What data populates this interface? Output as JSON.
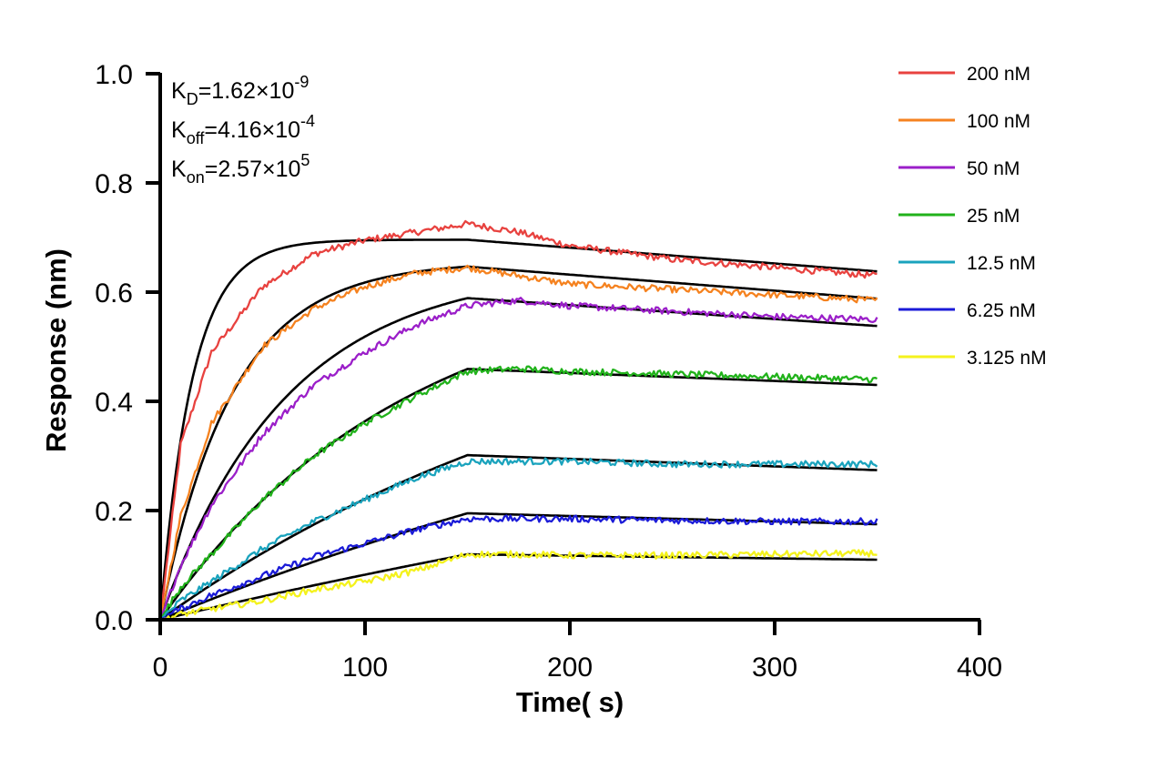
{
  "chart_data": {
    "type": "line",
    "title": "",
    "xlabel": "Time( s)",
    "ylabel": "Response (nm)",
    "xlim": [
      0,
      400
    ],
    "ylim": [
      0,
      1.0
    ],
    "x_ticks": [
      "0",
      "100",
      "200",
      "300",
      "400"
    ],
    "y_ticks": [
      "0.0",
      "0.2",
      "0.4",
      "0.6",
      "0.8",
      "1.0"
    ],
    "grid": false,
    "legend_position": "top-right",
    "association_end_s": 150,
    "end_s": 350,
    "annotations": [
      {
        "base": "K",
        "sub": "D",
        "mid": "=1.62×10",
        "sup": "-9"
      },
      {
        "base": "K",
        "sub": "off",
        "mid": "=4.16×10",
        "sup": "-4"
      },
      {
        "base": "K",
        "sub": "on",
        "mid": "=2.57×10",
        "sup": "5"
      }
    ],
    "fit_color": "#000000",
    "series": [
      {
        "name": "200 nM",
        "color": "#e8423f",
        "x": [
          0,
          10,
          25,
          50,
          75,
          100,
          125,
          150,
          175,
          200,
          250,
          300,
          350
        ],
        "y": [
          0,
          0.32,
          0.49,
          0.61,
          0.67,
          0.695,
          0.71,
          0.725,
          0.71,
          0.685,
          0.66,
          0.645,
          0.63
        ],
        "fit_plateau": 0.696,
        "fit_kobs": 0.064,
        "fit_end": 0.638
      },
      {
        "name": "100 nM",
        "color": "#f5821f",
        "x": [
          0,
          10,
          25,
          50,
          75,
          100,
          125,
          150,
          175,
          200,
          250,
          300,
          350
        ],
        "y": [
          0,
          0.19,
          0.36,
          0.5,
          0.57,
          0.61,
          0.635,
          0.645,
          0.63,
          0.615,
          0.605,
          0.595,
          0.585
        ],
        "fit_plateau": 0.656,
        "fit_kobs": 0.0284,
        "fit_end": 0.588
      },
      {
        "name": "50 nM",
        "color": "#9b1fc9",
        "x": [
          0,
          10,
          25,
          50,
          75,
          100,
          125,
          150,
          175,
          200,
          250,
          300,
          350
        ],
        "y": [
          0,
          0.1,
          0.21,
          0.34,
          0.43,
          0.49,
          0.54,
          0.575,
          0.585,
          0.575,
          0.565,
          0.555,
          0.55
        ],
        "fit_plateau": 0.645,
        "fit_kobs": 0.0163,
        "fit_end": 0.538
      },
      {
        "name": "25 nM",
        "color": "#21b21b",
        "x": [
          0,
          10,
          25,
          50,
          75,
          100,
          125,
          150,
          175,
          200,
          250,
          300,
          350
        ],
        "y": [
          0,
          0.06,
          0.12,
          0.22,
          0.3,
          0.36,
          0.41,
          0.455,
          0.46,
          0.455,
          0.45,
          0.445,
          0.44
        ],
        "fit_plateau": 0.645,
        "fit_kobs": 0.0083,
        "fit_end": 0.43
      },
      {
        "name": "12.5 nM",
        "color": "#1aa3bd",
        "x": [
          0,
          10,
          25,
          50,
          75,
          100,
          125,
          150,
          175,
          200,
          250,
          300,
          350
        ],
        "y": [
          0,
          0.035,
          0.07,
          0.13,
          0.18,
          0.22,
          0.26,
          0.29,
          0.29,
          0.29,
          0.285,
          0.285,
          0.285
        ],
        "fit_plateau": 0.645,
        "fit_kobs": 0.0042,
        "fit_end": 0.274
      },
      {
        "name": "6.25 nM",
        "color": "#1b1bd8",
        "x": [
          0,
          10,
          25,
          50,
          75,
          100,
          125,
          150,
          175,
          200,
          250,
          300,
          350
        ],
        "y": [
          0,
          0.02,
          0.045,
          0.08,
          0.115,
          0.14,
          0.165,
          0.185,
          0.185,
          0.185,
          0.182,
          0.18,
          0.18
        ],
        "fit_plateau": 0.645,
        "fit_kobs": 0.0024,
        "fit_end": 0.175
      },
      {
        "name": "3.125 nM",
        "color": "#f4f21c",
        "x": [
          0,
          10,
          25,
          50,
          75,
          100,
          125,
          150,
          175,
          200,
          250,
          300,
          350
        ],
        "y": [
          0,
          0.01,
          0.02,
          0.035,
          0.055,
          0.07,
          0.09,
          0.12,
          0.12,
          0.118,
          0.118,
          0.12,
          0.122
        ],
        "fit_plateau": 0.645,
        "fit_kobs": 0.00137,
        "fit_end": 0.11
      }
    ]
  }
}
